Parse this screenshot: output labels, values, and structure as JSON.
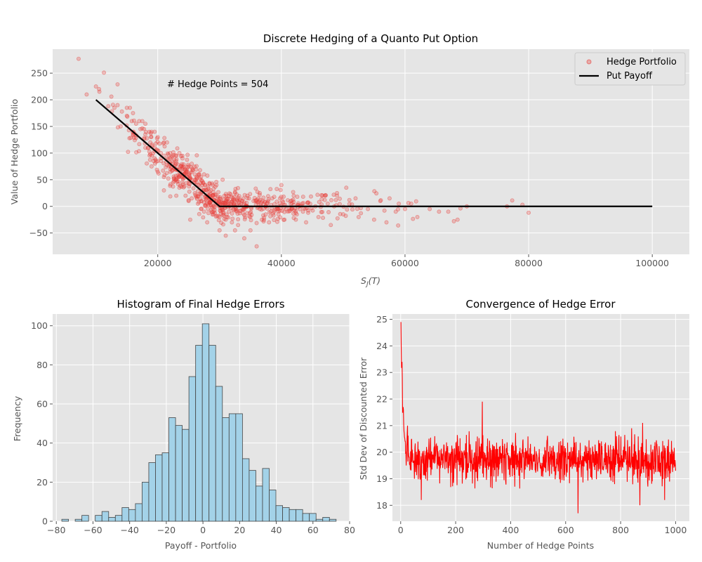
{
  "chart_data": [
    {
      "type": "scatter",
      "title": "Discrete Hedging of a Quanto Put Option",
      "xlabel": "S_J(T)",
      "ylabel": "Value of Hedge Portfolio",
      "xlim": [
        3000,
        106000
      ],
      "ylim": [
        -90,
        295
      ],
      "xticks": [
        20000,
        40000,
        60000,
        80000,
        100000
      ],
      "yticks": [
        -50,
        0,
        50,
        100,
        150,
        200,
        250
      ],
      "annotation": "# Hedge Points = 504",
      "legend": {
        "placement": "top-right",
        "entries": [
          "Hedge Portfolio",
          "Put Payoff"
        ]
      },
      "grid": true,
      "series": [
        {
          "name": "Hedge Portfolio",
          "kind": "scatter",
          "color": "#e8413c",
          "approx": true,
          "points": [
            [
              7200,
              277
            ],
            [
              10000,
              225
            ],
            [
              11300,
              251
            ],
            [
              12500,
              206
            ],
            [
              13500,
              229
            ],
            [
              10500,
              220
            ],
            [
              8500,
              210
            ],
            [
              12000,
              188
            ],
            [
              13000,
              185
            ],
            [
              14200,
              178
            ],
            [
              15000,
              170
            ],
            [
              15800,
              160
            ],
            [
              16500,
              155
            ],
            [
              17200,
              145
            ],
            [
              18000,
              135
            ],
            [
              18800,
              120
            ],
            [
              19500,
              110
            ],
            [
              20500,
              100
            ],
            [
              21500,
              90
            ],
            [
              22500,
              80
            ],
            [
              23500,
              70
            ],
            [
              24500,
              60
            ],
            [
              25500,
              50
            ],
            [
              26500,
              40
            ],
            [
              27500,
              30
            ],
            [
              28500,
              20
            ],
            [
              29500,
              10
            ],
            [
              14000,
              150
            ],
            [
              16000,
              135
            ],
            [
              18000,
              110
            ],
            [
              20000,
              85
            ],
            [
              22000,
              70
            ],
            [
              24000,
              45
            ],
            [
              26000,
              25
            ],
            [
              28000,
              5
            ],
            [
              13500,
              190
            ],
            [
              15500,
              185
            ],
            [
              17500,
              160
            ],
            [
              19500,
              140
            ],
            [
              21500,
              120
            ],
            [
              23500,
              100
            ],
            [
              25500,
              80
            ],
            [
              27500,
              60
            ],
            [
              29500,
              40
            ],
            [
              21000,
              30
            ],
            [
              23000,
              20
            ],
            [
              25000,
              10
            ],
            [
              27000,
              -5
            ],
            [
              29000,
              -15
            ],
            [
              31000,
              -25
            ],
            [
              30000,
              -20
            ],
            [
              32000,
              -30
            ],
            [
              33000,
              -35
            ],
            [
              35000,
              -45
            ],
            [
              36000,
              -75
            ],
            [
              34000,
              -60
            ],
            [
              31500,
              -10
            ],
            [
              33500,
              5
            ],
            [
              35500,
              10
            ],
            [
              37500,
              0
            ],
            [
              39500,
              -5
            ],
            [
              41500,
              5
            ],
            [
              43500,
              -10
            ],
            [
              45500,
              0
            ],
            [
              47500,
              5
            ],
            [
              49000,
              25
            ],
            [
              50500,
              35
            ],
            [
              52000,
              15
            ],
            [
              54000,
              -5
            ],
            [
              56000,
              10
            ],
            [
              57500,
              15
            ],
            [
              58500,
              -10
            ],
            [
              60000,
              -5
            ],
            [
              61000,
              5
            ],
            [
              62000,
              -20
            ],
            [
              64000,
              -5
            ],
            [
              65500,
              -10
            ],
            [
              67000,
              -10
            ],
            [
              68500,
              -25
            ],
            [
              70000,
              0
            ],
            [
              76500,
              0
            ],
            [
              79000,
              3
            ],
            [
              80000,
              -12
            ],
            [
              30500,
              50
            ],
            [
              32500,
              25
            ],
            [
              34500,
              20
            ],
            [
              36500,
              25
            ],
            [
              38500,
              15
            ],
            [
              40000,
              40
            ],
            [
              42000,
              20
            ],
            [
              44000,
              -30
            ],
            [
              46000,
              -20
            ],
            [
              48000,
              -35
            ],
            [
              50000,
              -15
            ],
            [
              52500,
              -20
            ],
            [
              55000,
              -25
            ],
            [
              57000,
              -30
            ],
            [
              59000,
              5
            ],
            [
              38000,
              -30
            ],
            [
              40500,
              -25
            ],
            [
              42500,
              -15
            ],
            [
              28000,
              -30
            ],
            [
              30000,
              -45
            ],
            [
              31000,
              -55
            ],
            [
              32500,
              -45
            ],
            [
              27000,
              55
            ],
            [
              26000,
              60
            ],
            [
              25000,
              75
            ],
            [
              24000,
              90
            ],
            [
              23000,
              95
            ],
            [
              22000,
              100
            ],
            [
              21000,
              120
            ],
            [
              20000,
              130
            ],
            [
              19000,
              140
            ],
            [
              18000,
              155
            ],
            [
              17000,
              160
            ],
            [
              16000,
              175
            ],
            [
              15000,
              185
            ],
            [
              22500,
              45
            ],
            [
              23500,
              35
            ],
            [
              24500,
              20
            ],
            [
              25500,
              15
            ],
            [
              26500,
              5
            ],
            [
              27500,
              -10
            ],
            [
              19000,
              75
            ],
            [
              20000,
              65
            ],
            [
              21000,
              55
            ]
          ]
        },
        {
          "name": "Put Payoff",
          "kind": "line",
          "color": "#000000",
          "x": [
            10000,
            30000,
            100000
          ],
          "y": [
            200,
            0,
            0
          ]
        }
      ]
    },
    {
      "type": "bar",
      "title": "Histogram of Final Hedge Errors",
      "xlabel": "Payoff - Portfolio",
      "ylabel": "Frequency",
      "xlim": [
        -82,
        80
      ],
      "ylim": [
        0,
        106
      ],
      "xticks": [
        -80,
        -60,
        -40,
        -20,
        0,
        20,
        40,
        60,
        80
      ],
      "yticks": [
        0,
        20,
        40,
        60,
        80,
        100
      ],
      "bin_start": -77,
      "bin_width": 3.65,
      "values": [
        1,
        0,
        1,
        3,
        0,
        3,
        5,
        2,
        3,
        7,
        6,
        9,
        20,
        30,
        34,
        35,
        53,
        49,
        47,
        74,
        90,
        101,
        90,
        69,
        53,
        55,
        55,
        32,
        26,
        18,
        27,
        16,
        8,
        7,
        6,
        6,
        4,
        4,
        1,
        2,
        1
      ],
      "bar_color": "#a3d2e8",
      "edge_color": "#444444",
      "grid": true
    },
    {
      "type": "line",
      "title": "Convergence of Hedge Error",
      "xlabel": "Number of Hedge Points",
      "ylabel": "Std Dev of Discounted Error",
      "xlim": [
        -30,
        1050
      ],
      "ylim": [
        17.4,
        25.2
      ],
      "xticks": [
        0,
        200,
        400,
        600,
        800,
        1000
      ],
      "yticks": [
        18,
        19,
        20,
        21,
        22,
        23,
        24,
        25
      ],
      "color": "#ff0000",
      "grid": true,
      "approx": true,
      "keypoints": [
        [
          1,
          24.9
        ],
        [
          3,
          23.2
        ],
        [
          5,
          23.4
        ],
        [
          7,
          21.5
        ],
        [
          9,
          21.7
        ],
        [
          12,
          20.8
        ],
        [
          16,
          20.4
        ],
        [
          20,
          19.5
        ],
        [
          25,
          21.0
        ],
        [
          30,
          19.8
        ],
        [
          40,
          20.5
        ],
        [
          50,
          19.0
        ],
        [
          60,
          19.9
        ],
        [
          75,
          18.2
        ],
        [
          100,
          19.7
        ],
        [
          150,
          19.8
        ],
        [
          200,
          19.6
        ],
        [
          297,
          21.9
        ],
        [
          300,
          19.6
        ],
        [
          400,
          19.7
        ],
        [
          500,
          19.6
        ],
        [
          600,
          19.8
        ],
        [
          645,
          17.7
        ],
        [
          700,
          19.6
        ],
        [
          800,
          19.7
        ],
        [
          840,
          20.9
        ],
        [
          870,
          18.0
        ],
        [
          880,
          21.1
        ],
        [
          960,
          18.2
        ],
        [
          1000,
          19.3
        ]
      ]
    }
  ]
}
